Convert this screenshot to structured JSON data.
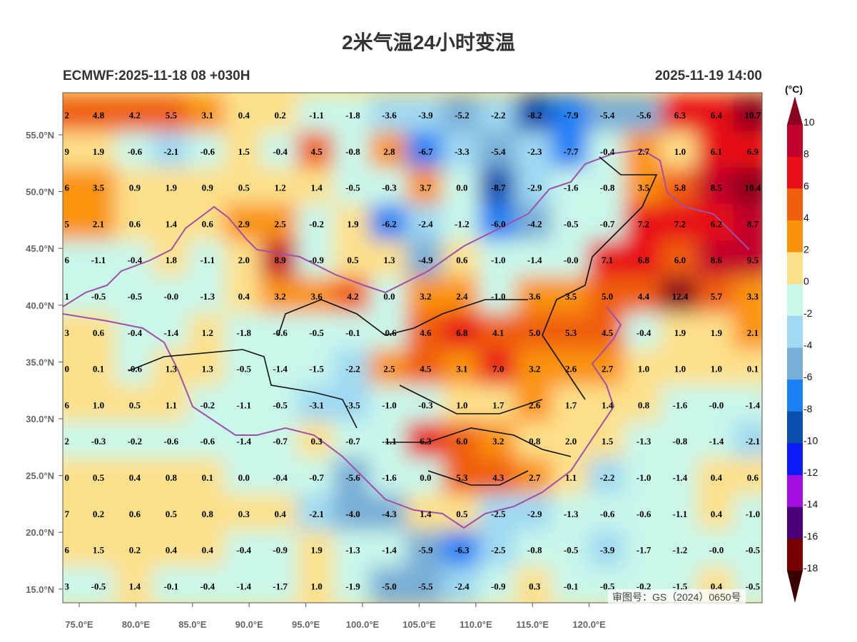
{
  "title": "2米气温24小时变温",
  "subtitle_left": "ECMWF:2025-11-18 08 +030H",
  "subtitle_right": "2025-11-19 14:00",
  "watermark": "审图号：GS（2024）0650号",
  "lat_ticks": [
    "55.0°N",
    "50.0°N",
    "45.0°N",
    "40.0°N",
    "35.0°N",
    "30.0°N",
    "25.0°N",
    "20.0°N",
    "15.0°N"
  ],
  "lon_ticks": [
    "75.0°E",
    "80.0°E",
    "85.0°E",
    "90.0°E",
    "95.0°E",
    "100.0°E",
    "105.0°E",
    "110.0°E",
    "115.0°E",
    "120.0°E"
  ],
  "colorbar": {
    "unit": "(°C)",
    "labels": [
      "10",
      "8",
      "6",
      "4",
      "2",
      "0",
      "-2",
      "-4",
      "-6",
      "-8",
      "-10",
      "-12",
      "-14",
      "-16",
      "-18"
    ],
    "colors": [
      "#8b001f",
      "#c2002c",
      "#e80f17",
      "#ef5f0c",
      "#fa930c",
      "#fde08a",
      "#c9f7ea",
      "#9fd9f2",
      "#79aed6",
      "#1b7ff5",
      "#0b4fae",
      "#0b1cf6",
      "#a20fe0",
      "#4a0078",
      "#7a0000",
      "#3a0000"
    ]
  },
  "grid_values": [
    [
      "2",
      "4.8",
      "4.2",
      "5.5",
      "3.1",
      "0.4",
      "0.2",
      "-1.1",
      "-1.8",
      "-3.6",
      "-3.9",
      "-5.2",
      "-2.2",
      "-8.2",
      "-7.9",
      "-5.4",
      "-5.6",
      "6.3",
      "6.4",
      "10.7"
    ],
    [
      "9",
      "1.9",
      "-0.6",
      "-2.1",
      "-0.6",
      "1.5",
      "-0.4",
      "4.5",
      "-0.8",
      "2.8",
      "-6.7",
      "-3.3",
      "-5.4",
      "-2.3",
      "-7.7",
      "-0.4",
      "2.7",
      "1.0",
      "6.1",
      "6.9"
    ],
    [
      "6",
      "3.5",
      "0.9",
      "1.9",
      "0.9",
      "0.5",
      "1.2",
      "1.4",
      "-0.5",
      "-0.3",
      "3.7",
      "0.0",
      "-8.7",
      "-2.9",
      "-1.6",
      "-0.8",
      "3.5",
      "5.8",
      "8.5",
      "10.4"
    ],
    [
      "5",
      "2.1",
      "0.6",
      "1.4",
      "0.6",
      "2.9",
      "2.5",
      "-0.2",
      "1.9",
      "-6.2",
      "-2.4",
      "-1.2",
      "-6.0",
      "-4.2",
      "-0.5",
      "-0.7",
      "7.2",
      "7.2",
      "6.2",
      "8.7"
    ],
    [
      "6",
      "-1.1",
      "-0.4",
      "1.8",
      "-1.1",
      "2.0",
      "8.9",
      "-0.9",
      "0.5",
      "1.3",
      "-4.9",
      "0.6",
      "-1.0",
      "-1.4",
      "-0.0",
      "7.1",
      "6.8",
      "6.0",
      "8.6",
      "9.5"
    ],
    [
      "1",
      "-0.5",
      "-0.5",
      "-0.0",
      "-1.3",
      "0.4",
      "3.2",
      "3.6",
      "4.2",
      "0.0",
      "3.2",
      "2.4",
      "-1.0",
      "3.6",
      "3.5",
      "5.0",
      "4.4",
      "12.4",
      "5.7",
      "3.3"
    ],
    [
      "3",
      "0.6",
      "-0.4",
      "-1.4",
      "1.2",
      "-1.8",
      "-0.6",
      "-0.5",
      "-0.1",
      "-0.6",
      "4.6",
      "6.8",
      "4.1",
      "5.0",
      "5.3",
      "4.5",
      "-0.4",
      "1.9",
      "1.9",
      "2.1"
    ],
    [
      "0",
      "0.1",
      "-0.6",
      "1.3",
      "1.3",
      "-0.5",
      "-1.4",
      "-1.5",
      "-2.2",
      "2.5",
      "4.5",
      "3.1",
      "7.0",
      "3.2",
      "2.6",
      "2.7",
      "1.0",
      "1.0",
      "1.0",
      "0.1"
    ],
    [
      "6",
      "1.0",
      "0.5",
      "1.1",
      "-0.2",
      "-1.1",
      "-0.5",
      "-3.1",
      "-3.5",
      "-1.0",
      "-0.3",
      "1.0",
      "1.7",
      "2.6",
      "1.7",
      "1.4",
      "0.8",
      "-1.6",
      "-0.0",
      "-1.4"
    ],
    [
      "2",
      "-0.3",
      "-0.2",
      "-0.6",
      "-0.6",
      "-1.4",
      "-0.7",
      "0.3",
      "-0.7",
      "-1.1",
      "6.3",
      "6.0",
      "3.2",
      "0.8",
      "2.0",
      "1.5",
      "-1.3",
      "-0.8",
      "-1.4",
      "-2.1"
    ],
    [
      "0",
      "0.5",
      "0.4",
      "0.8",
      "0.1",
      "0.0",
      "-0.4",
      "-0.7",
      "-5.6",
      "-1.6",
      "0.0",
      "5.3",
      "4.3",
      "2.7",
      "1.1",
      "-2.2",
      "-1.0",
      "-1.4",
      "0.4",
      "0.6"
    ],
    [
      "7",
      "0.2",
      "0.6",
      "0.5",
      "0.8",
      "0.3",
      "0.4",
      "-2.1",
      "-4.0",
      "-4.3",
      "1.4",
      "0.5",
      "-2.5",
      "-2.9",
      "-1.3",
      "-0.6",
      "-0.6",
      "-1.1",
      "0.4",
      "-1.0"
    ],
    [
      "6",
      "1.5",
      "0.2",
      "0.4",
      "0.4",
      "-0.4",
      "-0.9",
      "1.9",
      "-1.3",
      "-1.4",
      "-5.9",
      "-6.3",
      "-2.5",
      "-0.8",
      "-0.5",
      "-3.9",
      "-1.7",
      "-1.2",
      "-0.0",
      "-0.5"
    ],
    [
      "3",
      "-0.5",
      "1.4",
      "-0.1",
      "-0.4",
      "-1.4",
      "-1.7",
      "1.0",
      "-1.9",
      "-5.0",
      "-5.5",
      "-2.4",
      "-0.9",
      "0.3",
      "-0.1",
      "-0.5",
      "-0.2",
      "-1.5",
      "0.4",
      "-0.5"
    ]
  ]
}
